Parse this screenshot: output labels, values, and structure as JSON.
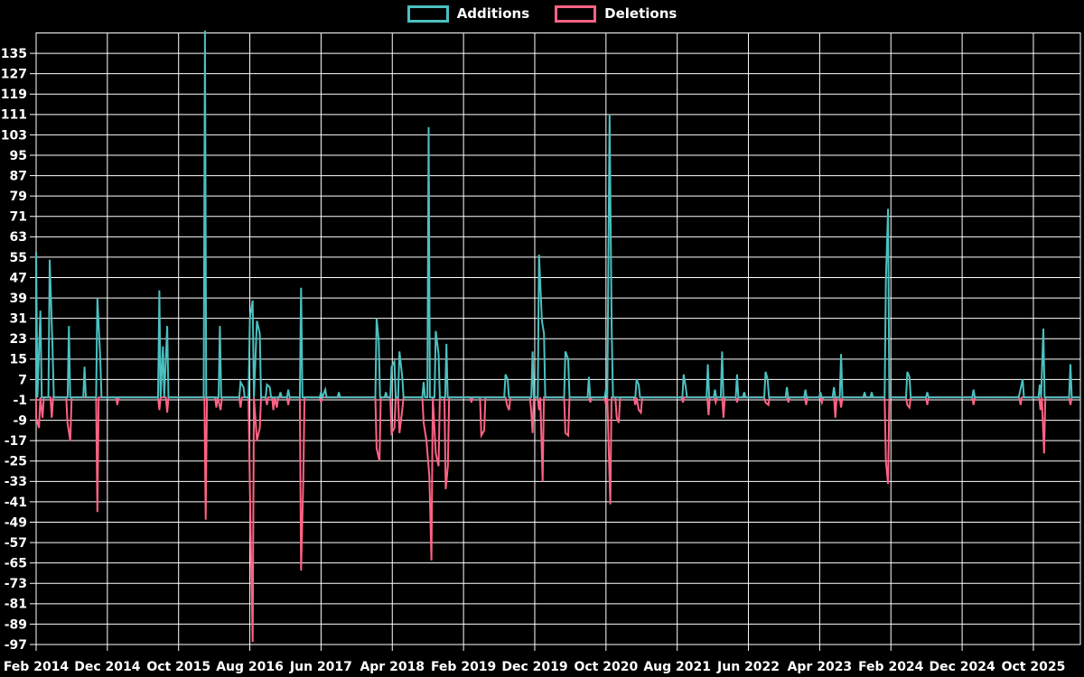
{
  "legend": {
    "additions_label": "Additions",
    "deletions_label": "Deletions"
  },
  "colors": {
    "background": "#000000",
    "grid": "#ffffff",
    "text": "#ffffff",
    "additions": "#4bc0c0",
    "deletions": "#ff6384"
  },
  "chart_data": {
    "type": "line",
    "title": "",
    "grid": true,
    "legend_position": "top",
    "x_unit": "months since Feb 2014",
    "x_axis_range": [
      0,
      146.6
    ],
    "y_axis_range": [
      -97,
      143
    ],
    "x_tick_positions": [
      0,
      10,
      20,
      30,
      40,
      50,
      60,
      70,
      80,
      90,
      100,
      110,
      120,
      130,
      140
    ],
    "x_tick_labels": [
      "Feb 2014",
      "Dec 2014",
      "Oct 2015",
      "Aug 2016",
      "Jun 2017",
      "Apr 2018",
      "Feb 2019",
      "Dec 2019",
      "Oct 2020",
      "Aug 2021",
      "Jun 2022",
      "Apr 2023",
      "Feb 2024",
      "Dec 2024",
      "Oct 2025"
    ],
    "y_tick_values": [
      135,
      127,
      119,
      111,
      103,
      95,
      87,
      79,
      71,
      63,
      55,
      47,
      39,
      31,
      23,
      15,
      7,
      -1,
      -9,
      -17,
      -25,
      -33,
      -41,
      -49,
      -57,
      -65,
      -73,
      -81,
      -89,
      -97
    ],
    "series": [
      {
        "name": "Additions",
        "color": "#4bc0c0",
        "baseline": 0,
        "points": [
          [
            0.0,
            57
          ],
          [
            0.6,
            34
          ],
          [
            1.9,
            54
          ],
          [
            2.3,
            20
          ],
          [
            4.6,
            28
          ],
          [
            6.8,
            12
          ],
          [
            8.6,
            39
          ],
          [
            9.0,
            15
          ],
          [
            17.3,
            42
          ],
          [
            17.8,
            20
          ],
          [
            18.4,
            28
          ],
          [
            23.7,
            144
          ],
          [
            25.8,
            28
          ],
          [
            28.7,
            6
          ],
          [
            29.1,
            4
          ],
          [
            30.0,
            31
          ],
          [
            30.4,
            38
          ],
          [
            31.0,
            30
          ],
          [
            31.4,
            25
          ],
          [
            32.4,
            5
          ],
          [
            32.8,
            4
          ],
          [
            34.3,
            2
          ],
          [
            35.4,
            3
          ],
          [
            37.2,
            43
          ],
          [
            40.0,
            2
          ],
          [
            40.6,
            3
          ],
          [
            42.5,
            2
          ],
          [
            47.8,
            31
          ],
          [
            48.1,
            22
          ],
          [
            49.1,
            2
          ],
          [
            49.9,
            12
          ],
          [
            50.3,
            14
          ],
          [
            51.0,
            18
          ],
          [
            51.4,
            8
          ],
          [
            54.4,
            6
          ],
          [
            55.1,
            106
          ],
          [
            56.1,
            26
          ],
          [
            56.5,
            17
          ],
          [
            57.6,
            21
          ],
          [
            65.9,
            9
          ],
          [
            66.2,
            7
          ],
          [
            69.7,
            18
          ],
          [
            70.6,
            56
          ],
          [
            71.0,
            30
          ],
          [
            71.3,
            25
          ],
          [
            74.3,
            18
          ],
          [
            74.7,
            15
          ],
          [
            77.6,
            8
          ],
          [
            80.0,
            3
          ],
          [
            80.5,
            111
          ],
          [
            80.8,
            27
          ],
          [
            84.3,
            7
          ],
          [
            84.6,
            5
          ],
          [
            90.9,
            9
          ],
          [
            91.2,
            4
          ],
          [
            94.3,
            13
          ],
          [
            95.3,
            3
          ],
          [
            96.3,
            18
          ],
          [
            98.4,
            9
          ],
          [
            99.4,
            2
          ],
          [
            102.4,
            10
          ],
          [
            102.7,
            7
          ],
          [
            105.4,
            4
          ],
          [
            108.0,
            3
          ],
          [
            110.1,
            2
          ],
          [
            112.0,
            4
          ],
          [
            113.0,
            17
          ],
          [
            116.3,
            2
          ],
          [
            117.3,
            2
          ],
          [
            119.3,
            46
          ],
          [
            119.6,
            74
          ],
          [
            122.3,
            10
          ],
          [
            122.6,
            8
          ],
          [
            125.1,
            2
          ],
          [
            131.6,
            3
          ],
          [
            138.1,
            2
          ],
          [
            138.5,
            7
          ],
          [
            140.9,
            5
          ],
          [
            141.4,
            27
          ],
          [
            145.2,
            13
          ]
        ]
      },
      {
        "name": "Deletions",
        "color": "#ff6384",
        "baseline": 0,
        "points": [
          [
            0.0,
            -8
          ],
          [
            0.4,
            -12
          ],
          [
            0.9,
            -8
          ],
          [
            2.2,
            -8
          ],
          [
            4.4,
            -10
          ],
          [
            4.8,
            -17
          ],
          [
            8.6,
            -45
          ],
          [
            11.4,
            -3
          ],
          [
            17.3,
            -5
          ],
          [
            18.4,
            -6
          ],
          [
            23.8,
            -48
          ],
          [
            25.3,
            -4
          ],
          [
            25.9,
            -5
          ],
          [
            28.7,
            -4
          ],
          [
            30.0,
            -35
          ],
          [
            30.4,
            -96
          ],
          [
            31.0,
            -17
          ],
          [
            31.4,
            -12
          ],
          [
            32.4,
            -3
          ],
          [
            33.3,
            -5
          ],
          [
            33.8,
            -4
          ],
          [
            35.4,
            -3
          ],
          [
            37.2,
            -68
          ],
          [
            37.5,
            -33
          ],
          [
            40.0,
            -2
          ],
          [
            47.8,
            -20
          ],
          [
            48.2,
            -25
          ],
          [
            49.9,
            -14
          ],
          [
            50.3,
            -12
          ],
          [
            51.0,
            -14
          ],
          [
            51.4,
            -5
          ],
          [
            54.4,
            -10
          ],
          [
            54.8,
            -17
          ],
          [
            55.2,
            -31
          ],
          [
            55.5,
            -64
          ],
          [
            56.1,
            -22
          ],
          [
            56.5,
            -27
          ],
          [
            57.5,
            -36
          ],
          [
            57.8,
            -27
          ],
          [
            61.1,
            -2
          ],
          [
            62.5,
            -15
          ],
          [
            62.9,
            -13
          ],
          [
            66.1,
            -3
          ],
          [
            66.4,
            -5
          ],
          [
            69.5,
            -5
          ],
          [
            69.7,
            -14
          ],
          [
            70.6,
            -5
          ],
          [
            71.1,
            -33
          ],
          [
            74.3,
            -14
          ],
          [
            74.7,
            -15
          ],
          [
            77.8,
            -2
          ],
          [
            80.0,
            -3
          ],
          [
            80.6,
            -42
          ],
          [
            81.5,
            -8
          ],
          [
            81.8,
            -10
          ],
          [
            84.1,
            -3
          ],
          [
            84.6,
            -5
          ],
          [
            84.9,
            -6
          ],
          [
            90.8,
            -2
          ],
          [
            94.4,
            -7
          ],
          [
            95.4,
            -2
          ],
          [
            96.5,
            -8
          ],
          [
            98.4,
            -2
          ],
          [
            102.4,
            -2
          ],
          [
            102.8,
            -3
          ],
          [
            105.6,
            -2
          ],
          [
            108.1,
            -3
          ],
          [
            110.3,
            -2
          ],
          [
            112.2,
            -8
          ],
          [
            113.0,
            -4
          ],
          [
            119.3,
            -25
          ],
          [
            119.6,
            -34
          ],
          [
            122.3,
            -3
          ],
          [
            122.6,
            -4
          ],
          [
            125.1,
            -3
          ],
          [
            131.6,
            -3
          ],
          [
            138.2,
            -3
          ],
          [
            141.0,
            -5
          ],
          [
            141.5,
            -22
          ],
          [
            145.2,
            -3
          ]
        ]
      }
    ]
  }
}
